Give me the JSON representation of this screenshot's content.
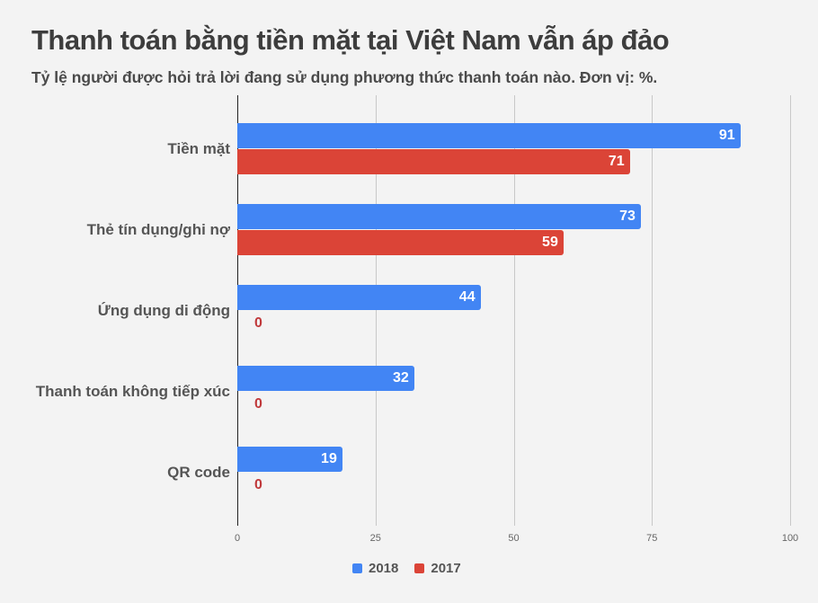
{
  "header": {
    "title": "Thanh toán bằng tiền mặt tại Việt Nam vẫn áp đảo",
    "subtitle": "Tỷ lệ người được hỏi trả lời đang sử dụng phương thức thanh toán nào. Đơn vị: %."
  },
  "legend": [
    {
      "label": "2018",
      "color": "#4285F4"
    },
    {
      "label": "2017",
      "color": "#DB4437"
    }
  ],
  "axis": {
    "ticks": [
      "0",
      "25",
      "50",
      "75",
      "100"
    ]
  },
  "chart_data": {
    "type": "bar",
    "orientation": "horizontal",
    "title": "Thanh toán bằng tiền mặt tại Việt Nam vẫn áp đảo",
    "subtitle": "Tỷ lệ người được hỏi trả lời đang sử dụng phương thức thanh toán nào. Đơn vị: %.",
    "categories": [
      "Tiền mặt",
      "Thẻ tín dụng/ghi nợ",
      "Ứng dụng di động",
      "Thanh toán không tiếp xúc",
      "QR code"
    ],
    "series": [
      {
        "name": "2018",
        "color": "#4285F4",
        "values": [
          91,
          73,
          44,
          32,
          19
        ]
      },
      {
        "name": "2017",
        "color": "#DB4437",
        "values": [
          71,
          59,
          0,
          0,
          0
        ]
      }
    ],
    "xlabel": "",
    "ylabel": "",
    "xlim": [
      0,
      100
    ],
    "xticks": [
      0,
      25,
      50,
      75,
      100
    ],
    "grid": true,
    "legend_position": "bottom",
    "data_labels": true
  }
}
